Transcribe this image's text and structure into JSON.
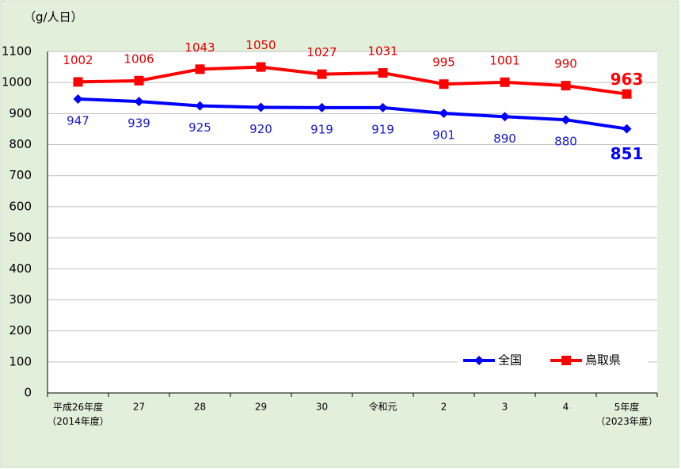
{
  "chart_data": {
    "type": "line",
    "y_unit": "（g/人日）",
    "categories": [
      "平成26年度\n（2014年度）",
      "27",
      "28",
      "29",
      "30",
      "令和元",
      "2",
      "3",
      "4",
      "5年度\n（2023年度）"
    ],
    "series": [
      {
        "name": "全国",
        "color": "#0000ff",
        "marker": "diamond",
        "label_position": "below",
        "values": [
          947,
          939,
          925,
          920,
          919,
          919,
          901,
          890,
          880,
          851
        ]
      },
      {
        "name": "鳥取県",
        "color": "#ff0000",
        "marker": "square",
        "label_position": "above",
        "values": [
          1002,
          1006,
          1043,
          1050,
          1027,
          1031,
          995,
          1001,
          990,
          963
        ]
      }
    ],
    "ylim": [
      0,
      1100
    ],
    "yticks": [
      0,
      100,
      200,
      300,
      400,
      500,
      600,
      700,
      800,
      900,
      1000,
      1100
    ],
    "grid": true,
    "legend": "lower-right"
  }
}
